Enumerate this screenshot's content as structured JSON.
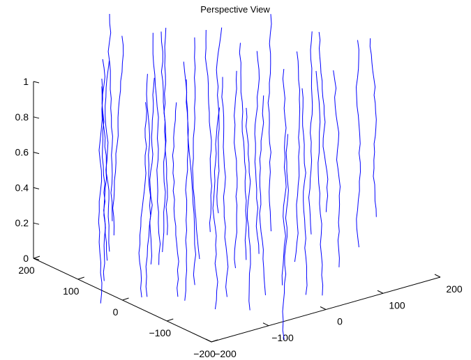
{
  "chart_data": {
    "type": "line",
    "title": "Perspective View",
    "zlabel_ticks": [
      "0",
      "0.2",
      "0.4",
      "0.6",
      "0.8",
      "1"
    ],
    "x_ticks": [
      "−200",
      "−100",
      "0",
      "100",
      "200"
    ],
    "y_ticks": [
      "−200",
      "−100",
      "0",
      "100",
      "200"
    ],
    "xlim": [
      -200,
      200
    ],
    "ylim": [
      -200,
      200
    ],
    "zlim": [
      0,
      1
    ],
    "grid": false,
    "line_color": "#0000ff",
    "series_count": 36
  }
}
